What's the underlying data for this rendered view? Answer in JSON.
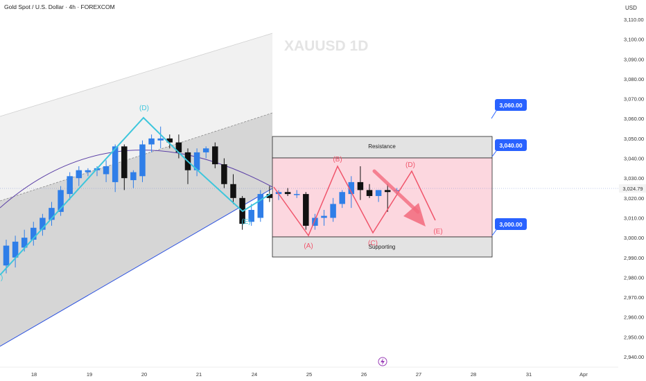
{
  "header": {
    "instrument": "Gold Spot / U.S. Dollar · 4h · FOREXCOM",
    "currency": "USD"
  },
  "watermark": "XAUUSD 1D",
  "chart_data": {
    "type": "candlestick",
    "ylim": [
      2935,
      3113
    ],
    "y_ticks": [
      2940,
      2950,
      2960,
      2970,
      2980,
      2990,
      3000,
      3010,
      3020,
      3030,
      3040,
      3050,
      3060,
      3070,
      3080,
      3090,
      3100,
      3110
    ],
    "y_tick_labels": [
      "2,940.00",
      "2,950.00",
      "2,960.00",
      "2,970.00",
      "2,980.00",
      "2,990.00",
      "3,000.00",
      "3,010.00",
      "3,020.00",
      "3,030.00",
      "3,040.00",
      "3,050.00",
      "3,060.00",
      "3,070.00",
      "3,080.00",
      "3,090.00",
      "3,100.00",
      "3,110.00"
    ],
    "x_ticks": [
      "18",
      "19",
      "20",
      "21",
      "24",
      "25",
      "26",
      "27",
      "28",
      "31",
      "Apr"
    ],
    "current_price": 3024.79,
    "current_price_label": "3,024.79",
    "candles": [
      {
        "o": 2986,
        "h": 2999,
        "l": 2982,
        "c": 2996
      },
      {
        "o": 2990,
        "h": 3001,
        "l": 2985,
        "c": 2998
      },
      {
        "o": 2995,
        "h": 3004,
        "l": 2993,
        "c": 3000
      },
      {
        "o": 2999,
        "h": 3008,
        "l": 2996,
        "c": 3005
      },
      {
        "o": 3004,
        "h": 3012,
        "l": 3001,
        "c": 3010
      },
      {
        "o": 3009,
        "h": 3018,
        "l": 3006,
        "c": 3015
      },
      {
        "o": 3013,
        "h": 3026,
        "l": 3011,
        "c": 3024
      },
      {
        "o": 3022,
        "h": 3033,
        "l": 3019,
        "c": 3031
      },
      {
        "o": 3030,
        "h": 3036,
        "l": 3026,
        "c": 3034
      },
      {
        "o": 3033,
        "h": 3035,
        "l": 3031,
        "c": 3034
      },
      {
        "o": 3034,
        "h": 3036,
        "l": 3031,
        "c": 3035
      },
      {
        "o": 3032,
        "h": 3039,
        "l": 3028,
        "c": 3036
      },
      {
        "o": 3028,
        "h": 3047,
        "l": 3023,
        "c": 3046
      },
      {
        "o": 3046,
        "h": 3047,
        "l": 3024,
        "c": 3030
      },
      {
        "o": 3029,
        "h": 3034,
        "l": 3025,
        "c": 3033
      },
      {
        "o": 3031,
        "h": 3049,
        "l": 3028,
        "c": 3047
      },
      {
        "o": 3047,
        "h": 3052,
        "l": 3043,
        "c": 3050
      },
      {
        "o": 3049,
        "h": 3056,
        "l": 3045,
        "c": 3050
      },
      {
        "o": 3050,
        "h": 3052,
        "l": 3045,
        "c": 3048
      },
      {
        "o": 3048,
        "h": 3052,
        "l": 3040,
        "c": 3043
      },
      {
        "o": 3043,
        "h": 3045,
        "l": 3027,
        "c": 3034
      },
      {
        "o": 3034,
        "h": 3045,
        "l": 3031,
        "c": 3043
      },
      {
        "o": 3043,
        "h": 3046,
        "l": 3040,
        "c": 3045
      },
      {
        "o": 3046,
        "h": 3048,
        "l": 3035,
        "c": 3037
      },
      {
        "o": 3037,
        "h": 3040,
        "l": 3025,
        "c": 3027
      },
      {
        "o": 3027,
        "h": 3032,
        "l": 3017,
        "c": 3020
      },
      {
        "o": 3020,
        "h": 3021,
        "l": 3004,
        "c": 3007
      },
      {
        "o": 3008,
        "h": 3017,
        "l": 3006,
        "c": 3014
      },
      {
        "o": 3010,
        "h": 3024,
        "l": 3008,
        "c": 3022
      },
      {
        "o": 3022,
        "h": 3026,
        "l": 3018,
        "c": 3020
      },
      {
        "o": 3022,
        "h": 3024,
        "l": 3019,
        "c": 3023
      },
      {
        "o": 3023,
        "h": 3025,
        "l": 3021,
        "c": 3022
      },
      {
        "o": 3022,
        "h": 3024,
        "l": 3020,
        "c": 3022
      },
      {
        "o": 3022,
        "h": 3023,
        "l": 3004,
        "c": 3006
      },
      {
        "o": 3006,
        "h": 3012,
        "l": 3004,
        "c": 3010
      },
      {
        "o": 3010,
        "h": 3014,
        "l": 3006,
        "c": 3011
      },
      {
        "o": 3010,
        "h": 3020,
        "l": 3008,
        "c": 3017
      },
      {
        "o": 3017,
        "h": 3024,
        "l": 3015,
        "c": 3023
      },
      {
        "o": 3022,
        "h": 3031,
        "l": 3015,
        "c": 3028
      },
      {
        "o": 3028,
        "h": 3036,
        "l": 3019,
        "c": 3024
      },
      {
        "o": 3024,
        "h": 3027,
        "l": 3020,
        "c": 3021
      },
      {
        "o": 3021,
        "h": 3024,
        "l": 3018,
        "c": 3024
      },
      {
        "o": 3024,
        "h": 3027,
        "l": 3013,
        "c": 3023
      },
      {
        "o": 3024,
        "h": 3025,
        "l": 3022,
        "c": 3024
      }
    ],
    "zones": [
      {
        "label": "Resistance",
        "low": 3040,
        "high": 3048
      },
      {
        "label": "Supporting",
        "low": 2991,
        "high": 3000
      },
      {
        "label": "",
        "low": 3000,
        "high": 3040
      }
    ],
    "price_labels": [
      "3,060.00",
      "3,040.00",
      "3,000.00"
    ],
    "wave_labels_cyan": [
      "(D)",
      "(E)",
      ")"
    ],
    "wave_labels_red": [
      "(A)",
      "(B)",
      "(C)",
      "(D)",
      "(E)"
    ],
    "colors": {
      "bull": "#2f7ee8",
      "bear": "#111111",
      "cyan_wave": "#3ec6dc",
      "red_wave": "#f0556b",
      "zone_pink": "#fcd7df",
      "label_blue": "#2962ff",
      "arc": "#5b3fa6",
      "trend_line": "#2c52e0"
    }
  }
}
